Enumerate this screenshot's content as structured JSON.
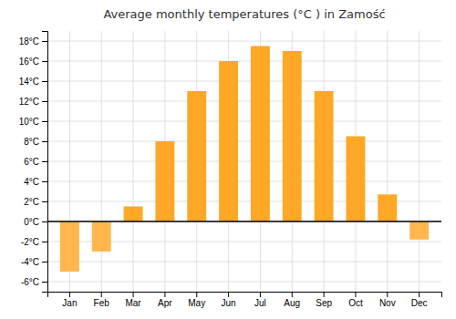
{
  "chart_data": {
    "type": "bar",
    "title": "Average monthly temperatures (°C ) in Zamość",
    "categories": [
      "Jan",
      "Feb",
      "Mar",
      "Apr",
      "May",
      "Jun",
      "Jul",
      "Aug",
      "Sep",
      "Oct",
      "Nov",
      "Dec"
    ],
    "values": [
      -5.0,
      -3.0,
      1.5,
      8.0,
      13.0,
      16.0,
      17.5,
      17.0,
      13.0,
      8.5,
      2.7,
      -1.8
    ],
    "colors": [
      "#FFB74D",
      "#FFB74D",
      "#FFA726",
      "#FFA726",
      "#FFA726",
      "#FFA726",
      "#FFA726",
      "#FFA726",
      "#FFA726",
      "#FFA726",
      "#FFA726",
      "#FFB74D"
    ],
    "ylim": [
      -7,
      19
    ],
    "yticks": [
      {
        "value": -6,
        "label": "-6°C"
      },
      {
        "value": -4,
        "label": "-4°C"
      },
      {
        "value": -2,
        "label": "-2°C"
      },
      {
        "value": 0,
        "label": "0°C"
      },
      {
        "value": 2,
        "label": "2°C"
      },
      {
        "value": 4,
        "label": "4°C"
      },
      {
        "value": 6,
        "label": "6°C"
      },
      {
        "value": 8,
        "label": "8°C"
      },
      {
        "value": 10,
        "label": "10°C"
      },
      {
        "value": 12,
        "label": "12°C"
      },
      {
        "value": 14,
        "label": "14°C"
      },
      {
        "value": 16,
        "label": "16°C"
      },
      {
        "value": 18,
        "label": "18°C"
      }
    ],
    "grid": true
  }
}
